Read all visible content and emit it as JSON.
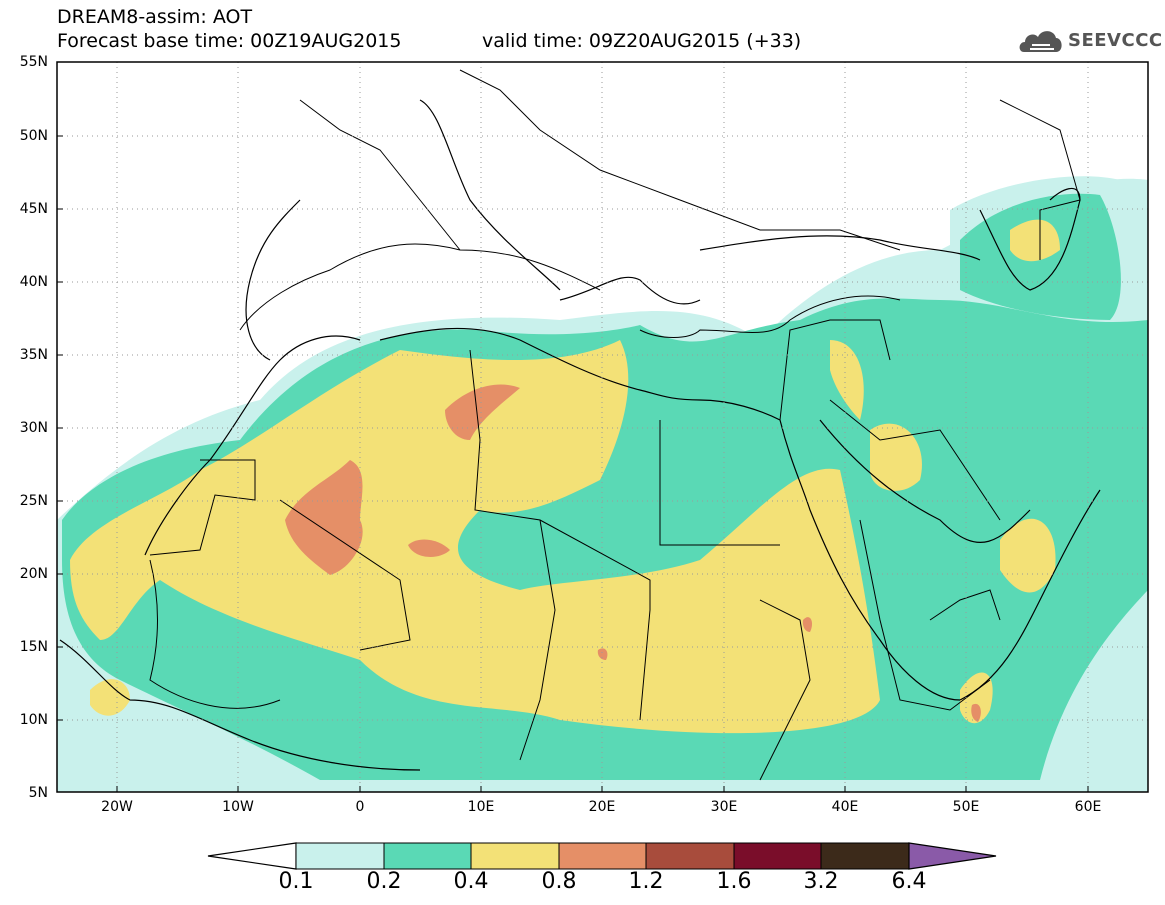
{
  "header": {
    "title": "DREAM8-assim: AOT",
    "base_time": "Forecast base time: 00Z19AUG2015",
    "valid_time": "valid time: 09Z20AUG2015 (+33)",
    "logo_text": "SEEVCCC",
    "logo_icon": "cloud-icon"
  },
  "map": {
    "lat_labels": [
      "55N",
      "50N",
      "45N",
      "40N",
      "35N",
      "30N",
      "25N",
      "20N",
      "15N",
      "10N",
      "5N"
    ],
    "lon_labels": [
      "20W",
      "10W",
      "0",
      "10E",
      "20E",
      "30E",
      "40E",
      "50E",
      "60E"
    ],
    "lon_range": [
      -25,
      65
    ],
    "lat_range": [
      5,
      55
    ]
  },
  "colorbar": {
    "labels": [
      "0.1",
      "0.2",
      "0.4",
      "0.8",
      "1.2",
      "1.6",
      "3.2",
      "6.4"
    ],
    "colors": [
      "#c9f1ec",
      "#5ad9b5",
      "#f3e177",
      "#e58f67",
      "#a84c3c",
      "#7a0d2a",
      "#3c2a1a",
      "#8a5aa8"
    ]
  }
}
